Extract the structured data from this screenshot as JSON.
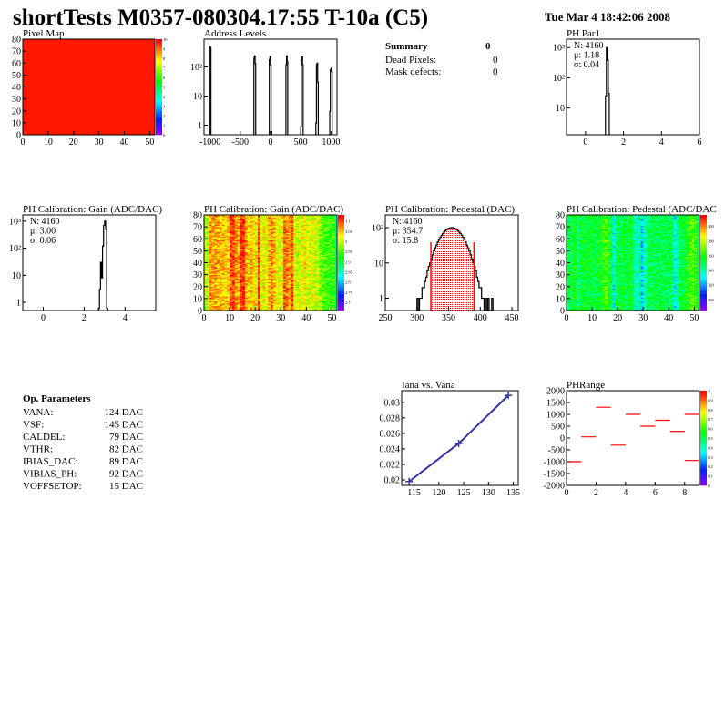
{
  "header": {
    "title": "shortTests M0357-080304.17:55 T-10a (C5)",
    "date": "Tue Mar  4 18:42:06 2008"
  },
  "summary": {
    "title": "Summary",
    "value": "0",
    "rows": [
      {
        "label": "Dead Pixels:",
        "value": "0"
      },
      {
        "label": "Mask defects:",
        "value": "0"
      }
    ]
  },
  "op_parameters": {
    "title": "Op. Parameters",
    "rows": [
      {
        "label": "VANA:",
        "value": "124 DAC"
      },
      {
        "label": "VSF:",
        "value": "145 DAC"
      },
      {
        "label": "CALDEL:",
        "value": "79 DAC"
      },
      {
        "label": "VTHR:",
        "value": "82 DAC"
      },
      {
        "label": "IBIAS_DAC:",
        "value": "89 DAC"
      },
      {
        "label": "VIBIAS_PH:",
        "value": "92 DAC"
      },
      {
        "label": "VOFFSETOP:",
        "value": "15 DAC"
      }
    ]
  },
  "colors": {
    "frame": "#000000",
    "red": "#ff0000",
    "blue": "#3333aa"
  },
  "chart_data": [
    {
      "id": "pixelmap",
      "type": "heatmap",
      "title": "Pixel Map",
      "xlim": [
        0,
        52
      ],
      "ylim": [
        0,
        80
      ],
      "xticks": [
        "0",
        "10",
        "20",
        "30",
        "40",
        "50"
      ],
      "yticks": [
        "0",
        "10",
        "20",
        "30",
        "40",
        "50",
        "60",
        "70",
        "80"
      ],
      "zlim": [
        0,
        10
      ],
      "zticks": [
        "0",
        "1",
        "2",
        "3",
        "4",
        "5",
        "6",
        "7",
        "8",
        "9",
        "10"
      ],
      "uniform_value": 10
    },
    {
      "id": "address",
      "type": "bar",
      "title": "Address Levels",
      "xlim": [
        -1100,
        1100
      ],
      "ylim": [
        0.47,
        900
      ],
      "log_y": true,
      "xticks": [
        "-1000",
        "-500",
        "0",
        "500",
        "1000"
      ],
      "yticks": [
        "1",
        "10",
        "10²"
      ],
      "peaks": [
        {
          "x": -1000,
          "counts": [
            0.6,
            500,
            450
          ]
        },
        {
          "x": -260,
          "counts": [
            200,
            240,
            130
          ]
        },
        {
          "x": 0,
          "counts": [
            180,
            230,
            120,
            0.6
          ]
        },
        {
          "x": 270,
          "counts": [
            120,
            240,
            150
          ]
        },
        {
          "x": 520,
          "counts": [
            0.9,
            180,
            220,
            120
          ]
        },
        {
          "x": 770,
          "counts": [
            1.2,
            120,
            135,
            30
          ]
        },
        {
          "x": 1000,
          "counts": [
            3,
            80,
            90,
            70
          ]
        }
      ]
    },
    {
      "id": "phpar1",
      "type": "bar",
      "title": "PH Par1",
      "xlim": [
        -1,
        6
      ],
      "ylim": [
        1.3,
        1900
      ],
      "log_y": true,
      "xticks": [
        "0",
        "2",
        "4",
        "6"
      ],
      "yticks": [
        "10",
        "10²",
        "10³"
      ],
      "bin_start": 1.05,
      "bin_width": 0.05,
      "counts": [
        25,
        1000,
        380,
        30
      ],
      "stats": [
        "N: 4160",
        "μ: 1.18",
        "σ: 0.04"
      ]
    },
    {
      "id": "gainhist",
      "type": "bar",
      "title": "PH Calibration: Gain (ADC/DAC)",
      "xlim": [
        -1,
        5.5
      ],
      "ylim": [
        0.5,
        1700
      ],
      "log_y": true,
      "xticks": [
        "0",
        "2",
        "4"
      ],
      "yticks": [
        "1",
        "10",
        "10²",
        "10³"
      ],
      "bin_start": 2.7,
      "bin_width": 0.05,
      "counts": [
        0.6,
        3,
        30,
        8,
        120,
        700,
        1000,
        500,
        0.6
      ],
      "stats": [
        "N: 4160",
        "μ: 3.00",
        "σ: 0.06"
      ]
    },
    {
      "id": "gainmap",
      "type": "heatmap",
      "title": "PH Calibration: Gain (ADC/DAC)",
      "xlim": [
        0,
        52
      ],
      "ylim": [
        0,
        80
      ],
      "xticks": [
        "0",
        "10",
        "20",
        "30",
        "40",
        "50"
      ],
      "yticks": [
        "0",
        "10",
        "20",
        "30",
        "40",
        "50",
        "60",
        "70",
        "80"
      ],
      "zlim": [
        2.66,
        3.13
      ],
      "zticks": [
        "2.7",
        "2.75",
        "2.8",
        "2.85",
        "2.9",
        "2.95",
        "3",
        "3.05",
        "3.1"
      ],
      "column_means": [
        3.0,
        3.0,
        3.07,
        3.06,
        3.07,
        3.06,
        3.05,
        3.06,
        3.04,
        3.05,
        3.1,
        3.1,
        3.07,
        3.06,
        3.11,
        3.11,
        3.06,
        3.04,
        3.05,
        3.03,
        3.04,
        3.1,
        3.02,
        3.03,
        3.01,
        3.06,
        3.07,
        3.05,
        3.02,
        3.01,
        3.03,
        3.09,
        3.08,
        3.06,
        3.1,
        3.02,
        3.0,
        3.01,
        3.02,
        3.03,
        3.01,
        3.0,
        3.02,
        3.0,
        3.01,
        2.97,
        2.96,
        2.95,
        2.95,
        2.94,
        2.95,
        2.88
      ]
    },
    {
      "id": "pedhist",
      "type": "bar",
      "title": "PH Calibration: Pedestal (DAC)",
      "xlim": [
        250,
        460
      ],
      "ylim": [
        0.45,
        230
      ],
      "log_y": true,
      "xticks": [
        "250",
        "300",
        "350",
        "400",
        "450"
      ],
      "yticks": [
        "1",
        "10",
        "10²"
      ],
      "bin_start": 300,
      "bin_width": 2,
      "counts": [
        1,
        0,
        1,
        1,
        2,
        2,
        3,
        4,
        6,
        8,
        10,
        13,
        17,
        22,
        27,
        32,
        39,
        46,
        53,
        61,
        68,
        75,
        82,
        88,
        93,
        97,
        99,
        100,
        99,
        97,
        93,
        88,
        82,
        75,
        68,
        61,
        53,
        46,
        39,
        32,
        27,
        22,
        17,
        13,
        10,
        8,
        6,
        4,
        3,
        2,
        2,
        1,
        1,
        0,
        1,
        0,
        1,
        0,
        0,
        1
      ],
      "fit_range": [
        322,
        390
      ],
      "stats": [
        "N: 4160",
        "μ: 354.7",
        "σ: 15.8"
      ]
    },
    {
      "id": "pedmap",
      "type": "heatmap",
      "title": "PH Calibration: Pedestal (ADC/DAC",
      "xlim": [
        0,
        52
      ],
      "ylim": [
        0,
        80
      ],
      "xticks": [
        "0",
        "10",
        "20",
        "30",
        "40",
        "50"
      ],
      "yticks": [
        "0",
        "10",
        "20",
        "30",
        "40",
        "50",
        "60",
        "70",
        "80"
      ],
      "zlim": [
        285,
        415
      ],
      "zticks": [
        "300",
        "320",
        "340",
        "360",
        "380",
        "400"
      ],
      "column_means": [
        352,
        350,
        355,
        356,
        345,
        352,
        354,
        356,
        353,
        355,
        352,
        350,
        354,
        356,
        362,
        364,
        360,
        350,
        330,
        348,
        352,
        350,
        354,
        351,
        353,
        355,
        338,
        335,
        340,
        325,
        338,
        345,
        350,
        348,
        352,
        350,
        353,
        349,
        351,
        348,
        350,
        346,
        330,
        345,
        350,
        352,
        355,
        360,
        365,
        368,
        362,
        350
      ]
    },
    {
      "id": "iana",
      "type": "line",
      "title": "Iana vs. Vana",
      "xlim": [
        112.5,
        136
      ],
      "ylim": [
        0.0193,
        0.0315
      ],
      "xticks": [
        "115",
        "120",
        "125",
        "130",
        "135"
      ],
      "yticks": [
        "0.02",
        "0.022",
        "0.024",
        "0.026",
        "0.028",
        "0.03"
      ],
      "x": [
        114,
        124,
        134
      ],
      "y": [
        0.0198,
        0.0247,
        0.0309
      ]
    },
    {
      "id": "phrange",
      "type": "heatmap",
      "title": "PHRange",
      "xlim": [
        0,
        9
      ],
      "ylim": [
        -2000,
        2000
      ],
      "xticks": [
        "0",
        "2",
        "4",
        "6",
        "8"
      ],
      "yticks": [
        "-2000",
        "-1500",
        "-1000",
        "-500",
        "0",
        "500",
        "1000",
        "1500",
        "2000"
      ],
      "zlim": [
        0,
        1
      ],
      "zticks": [
        "0",
        "0.1",
        "0.2",
        "0.3",
        "0.4",
        "0.5",
        "0.6",
        "0.7",
        "0.8",
        "0.9",
        "1"
      ],
      "segments": [
        [
          0,
          1,
          -1000
        ],
        [
          1,
          2,
          50
        ],
        [
          2,
          3,
          1300
        ],
        [
          3,
          4,
          -300
        ],
        [
          4,
          5,
          1000
        ],
        [
          5,
          6,
          500
        ],
        [
          6,
          7,
          750
        ],
        [
          7,
          8,
          280
        ],
        [
          8,
          9,
          1000
        ],
        [
          8,
          9,
          -950
        ]
      ]
    }
  ]
}
